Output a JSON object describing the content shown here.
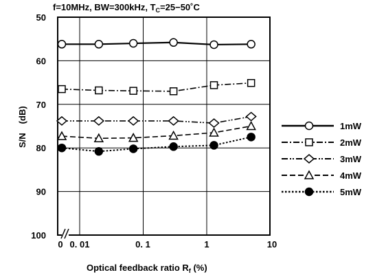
{
  "chart_data": {
    "type": "line",
    "title": "f=10MHz, BW=300kHz, T",
    "title_sub": "C",
    "title_tail": "=25−50˚C",
    "ylabel": "S/N　(dB)",
    "xlabel": "Optical feedback ratio R",
    "xlabel_sub": "f",
    "xlabel_tail": " (%)",
    "ylim": [
      50,
      100
    ],
    "y_inverted": true,
    "yticks": [
      "50",
      "60",
      "70",
      "80",
      "90",
      "100"
    ],
    "xscale": "log with broken segment for 0",
    "xticks": [
      "0",
      "0.01",
      "0.1",
      "1",
      "10"
    ],
    "grid": true,
    "legend_position": "right",
    "x": [
      0,
      0.02,
      0.07,
      0.3,
      1.3,
      5
    ],
    "series": [
      {
        "name": "1mW",
        "marker": "circle-open",
        "dash": "solid",
        "values": [
          56.2,
          56.2,
          56.0,
          55.8,
          56.3,
          56.2
        ]
      },
      {
        "name": "2mW",
        "marker": "square-open",
        "dash": "dash-dot",
        "values": [
          66.5,
          66.8,
          66.9,
          67.0,
          65.6,
          65.1
        ]
      },
      {
        "name": "3mW",
        "marker": "diamond-open",
        "dash": "dash-dot-dot",
        "values": [
          73.8,
          73.8,
          73.8,
          73.8,
          74.3,
          72.8
        ]
      },
      {
        "name": "4mW",
        "marker": "triangle-open",
        "dash": "dash",
        "values": [
          77.3,
          77.8,
          77.7,
          77.2,
          76.5,
          75.0
        ]
      },
      {
        "name": "5mW",
        "marker": "circle-filled",
        "dash": "dot",
        "values": [
          80.0,
          80.8,
          80.2,
          79.7,
          79.4,
          77.5
        ]
      }
    ]
  }
}
